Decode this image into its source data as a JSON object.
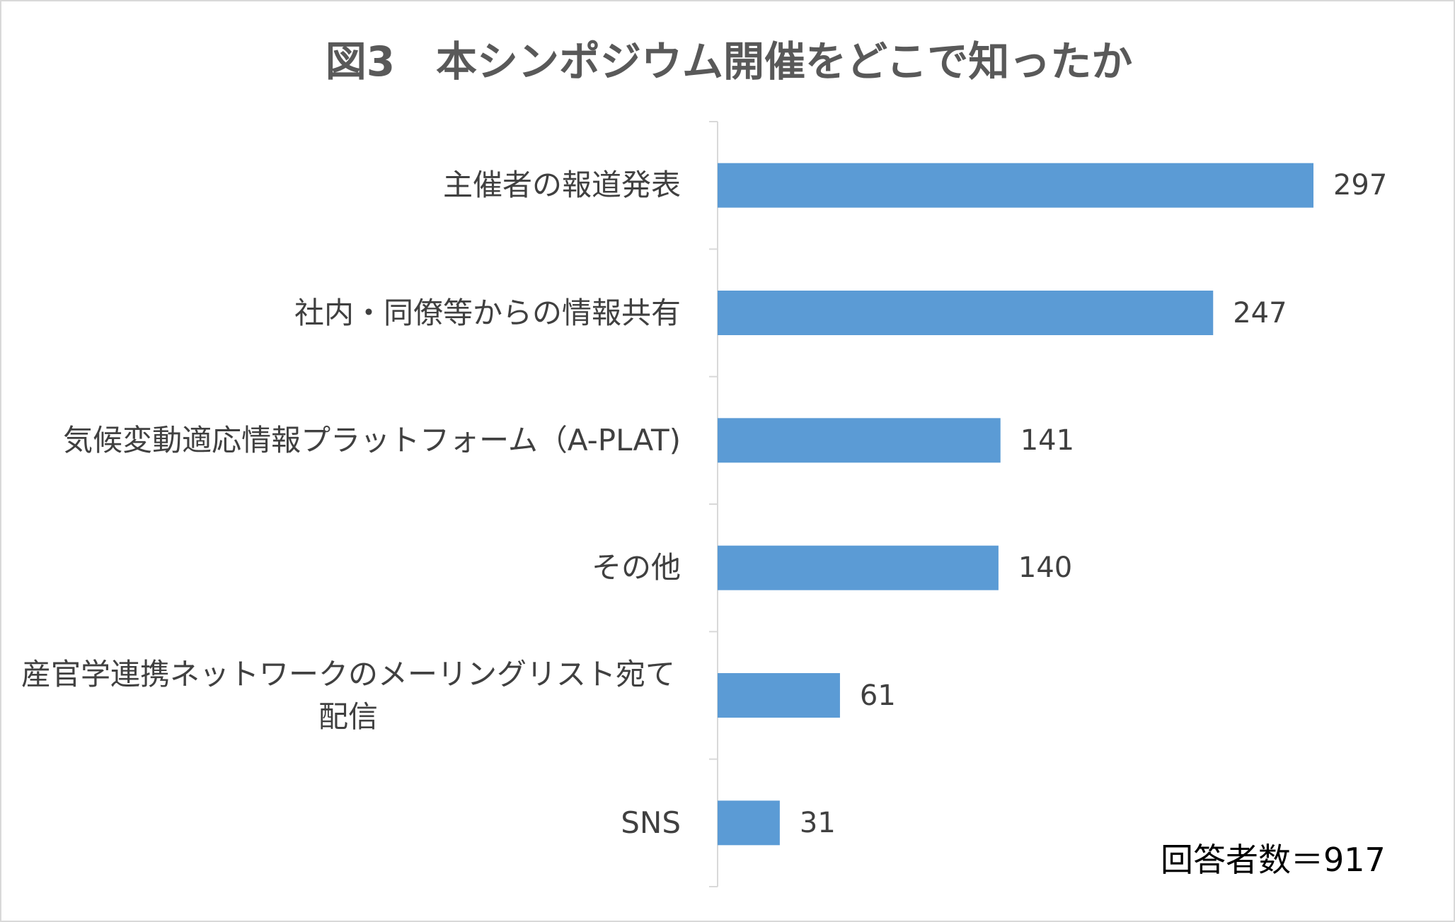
{
  "chart_data": {
    "type": "bar",
    "orientation": "horizontal",
    "title": "図3　本シンポジウム開催をどこで知ったか",
    "categories": [
      "主催者の報道発表",
      "社内・同僚等からの情報共有",
      "気候変動適応情報プラットフォーム（A-PLAT)",
      "その他",
      "産官学連携ネットワークのメーリングリスト宛て配信",
      "SNS"
    ],
    "values": [
      297,
      247,
      141,
      140,
      61,
      31
    ],
    "color": "#5b9bd5",
    "annotation": "回答者数＝917"
  }
}
